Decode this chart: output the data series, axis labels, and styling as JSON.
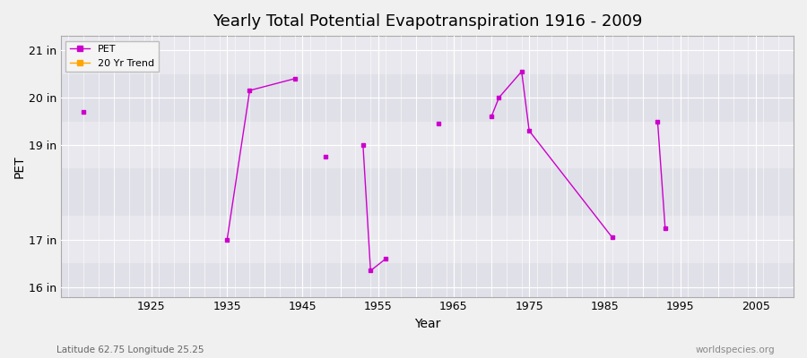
{
  "title": "Yearly Total Potential Evapotranspiration 1916 - 2009",
  "xlabel": "Year",
  "ylabel": "PET",
  "subtitle_left": "Latitude 62.75 Longitude 25.25",
  "subtitle_right": "worldspecies.org",
  "xlim": [
    1913,
    2010
  ],
  "ylim": [
    15.8,
    21.3
  ],
  "yticks": [
    16,
    17,
    19,
    20,
    21
  ],
  "ytick_labels": [
    "16 in",
    "17 in",
    "19 in",
    "20 in",
    "21 in"
  ],
  "xticks": [
    1925,
    1935,
    1945,
    1955,
    1965,
    1975,
    1985,
    1995,
    2005
  ],
  "background_color": "#f0f0f0",
  "plot_bg_color": "#e8e8e8",
  "grid_color": "#ffffff",
  "line_color": "#cc00cc",
  "marker_color": "#cc00cc",
  "pet_data": [
    [
      1916,
      19.7
    ],
    [
      1917,
      null
    ],
    [
      1935,
      17.0
    ],
    [
      1938,
      20.15
    ],
    [
      1944,
      20.4
    ],
    [
      1945,
      null
    ],
    [
      1948,
      18.75
    ],
    [
      1950,
      null
    ],
    [
      1953,
      19.0
    ],
    [
      1954,
      16.35
    ],
    [
      1956,
      16.6
    ],
    [
      1957,
      null
    ],
    [
      1963,
      19.45
    ],
    [
      1964,
      null
    ],
    [
      1970,
      19.6
    ],
    [
      1971,
      20.0
    ],
    [
      1974,
      20.55
    ],
    [
      1975,
      19.3
    ],
    [
      1986,
      17.05
    ],
    [
      1987,
      null
    ],
    [
      1992,
      19.5
    ],
    [
      1993,
      17.25
    ]
  ],
  "legend_pet_color": "#cc00cc",
  "legend_trend_color": "#FFA500",
  "stripe_colors": [
    "#e8e8e8",
    "#d8d8e0"
  ]
}
